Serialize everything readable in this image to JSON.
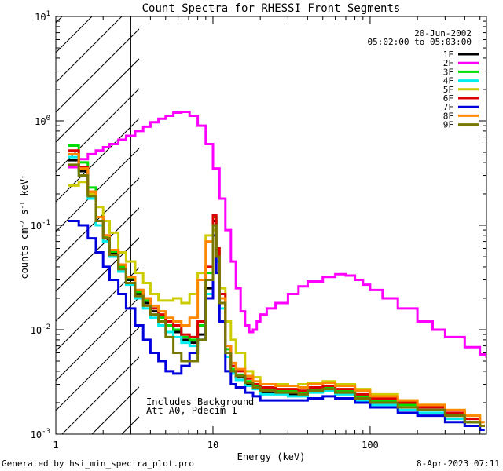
{
  "chart_data": {
    "type": "line",
    "title": "Count Spectra for RHESSI Front Segments",
    "xlabel": "Energy (keV)",
    "ylabel": "counts cm",
    "ylabel_sup1": "-2",
    "ylabel_mid": " s",
    "ylabel_sup2": "-1",
    "ylabel_mid2": " keV",
    "ylabel_sup3": "-1",
    "x_scale": "log",
    "y_scale": "log",
    "xlim": [
      1,
      550
    ],
    "ylim": [
      0.001,
      10
    ],
    "x_ticks": [
      {
        "v": 1,
        "label": "1"
      },
      {
        "v": 10,
        "label": "10"
      },
      {
        "v": 100,
        "label": "100"
      }
    ],
    "y_ticks": [
      {
        "v": 0.001,
        "base": "10",
        "exp": "-3"
      },
      {
        "v": 0.01,
        "base": "10",
        "exp": "-2"
      },
      {
        "v": 0.1,
        "base": "10",
        "exp": "-1"
      },
      {
        "v": 1,
        "base": "10",
        "exp": "0"
      },
      {
        "v": 10,
        "base": "10",
        "exp": "1"
      }
    ],
    "hatched_below_keV": 3,
    "date": "20-Jun-2002",
    "time_range": "05:02:00 to 05:03:00",
    "annotation_line1": "Includes Background",
    "annotation_line2": "Att A0, Pdecim 1",
    "footer_left": "Generated by hsi_min_spectra_plot.pro",
    "footer_right": "8-Apr-2023 07:11",
    "series": [
      {
        "name": "1F",
        "color": "#000000",
        "x": [
          1.2,
          1.4,
          1.6,
          1.8,
          2.0,
          2.2,
          2.5,
          2.8,
          3.2,
          3.6,
          4.0,
          4.5,
          5.0,
          5.6,
          6.3,
          7.1,
          8.0,
          9.0,
          10,
          10.5,
          11,
          12,
          13,
          14,
          16,
          18,
          20,
          25,
          30,
          35,
          40,
          50,
          60,
          80,
          100,
          150,
          200,
          300,
          400,
          500
        ],
        "y": [
          0.42,
          0.33,
          0.2,
          0.11,
          0.075,
          0.055,
          0.04,
          0.03,
          0.022,
          0.018,
          0.015,
          0.013,
          0.011,
          0.0095,
          0.008,
          0.0075,
          0.009,
          0.025,
          0.11,
          0.05,
          0.018,
          0.006,
          0.004,
          0.0035,
          0.003,
          0.0028,
          0.0025,
          0.0025,
          0.0024,
          0.0024,
          0.0026,
          0.0027,
          0.0025,
          0.0022,
          0.002,
          0.0018,
          0.0017,
          0.0015,
          0.0013,
          0.0012
        ]
      },
      {
        "name": "2F",
        "color": "#ff00ff",
        "x": [
          1.2,
          1.4,
          1.6,
          1.8,
          2.0,
          2.2,
          2.5,
          2.8,
          3.2,
          3.6,
          4.0,
          4.5,
          5.0,
          5.6,
          6.3,
          7.1,
          8.0,
          9.0,
          10,
          11,
          12,
          13,
          14,
          15,
          16,
          17,
          18,
          19,
          20,
          22,
          25,
          30,
          35,
          40,
          50,
          60,
          70,
          80,
          90,
          100,
          120,
          150,
          200,
          250,
          300,
          400,
          500,
          550
        ],
        "y": [
          0.36,
          0.43,
          0.48,
          0.52,
          0.56,
          0.6,
          0.66,
          0.72,
          0.8,
          0.88,
          0.97,
          1.05,
          1.12,
          1.2,
          1.22,
          1.12,
          0.9,
          0.6,
          0.35,
          0.18,
          0.09,
          0.045,
          0.025,
          0.015,
          0.011,
          0.0095,
          0.01,
          0.012,
          0.014,
          0.016,
          0.018,
          0.022,
          0.026,
          0.029,
          0.032,
          0.034,
          0.033,
          0.03,
          0.027,
          0.024,
          0.02,
          0.016,
          0.012,
          0.01,
          0.0085,
          0.0068,
          0.0058,
          0.0055
        ]
      },
      {
        "name": "3F",
        "color": "#00dd00",
        "x": [
          1.2,
          1.4,
          1.6,
          1.8,
          2.0,
          2.2,
          2.5,
          2.8,
          3.2,
          3.6,
          4.0,
          4.5,
          5.0,
          5.6,
          6.3,
          7.1,
          8.0,
          9.0,
          10,
          10.5,
          11,
          12,
          13,
          14,
          16,
          18,
          20,
          25,
          30,
          35,
          40,
          50,
          60,
          80,
          100,
          150,
          200,
          300,
          400,
          500
        ],
        "y": [
          0.58,
          0.4,
          0.23,
          0.12,
          0.078,
          0.056,
          0.04,
          0.031,
          0.023,
          0.019,
          0.016,
          0.013,
          0.011,
          0.01,
          0.0085,
          0.008,
          0.011,
          0.035,
          0.12,
          0.06,
          0.02,
          0.0065,
          0.0042,
          0.0037,
          0.0032,
          0.0029,
          0.0027,
          0.0026,
          0.0026,
          0.0025,
          0.0027,
          0.0028,
          0.0026,
          0.0023,
          0.0021,
          0.0019,
          0.0017,
          0.0015,
          0.0013,
          0.0012
        ]
      },
      {
        "name": "4F",
        "color": "#00eeee",
        "x": [
          1.2,
          1.4,
          1.6,
          1.8,
          2.0,
          2.2,
          2.5,
          2.8,
          3.2,
          3.6,
          4.0,
          4.5,
          5.0,
          5.6,
          6.3,
          7.1,
          8.0,
          9.0,
          10,
          10.5,
          11,
          12,
          13,
          14,
          16,
          18,
          20,
          25,
          30,
          35,
          40,
          50,
          60,
          80,
          100,
          150,
          200,
          300,
          400,
          500
        ],
        "y": [
          0.45,
          0.3,
          0.18,
          0.1,
          0.07,
          0.05,
          0.036,
          0.027,
          0.02,
          0.016,
          0.013,
          0.011,
          0.0095,
          0.0085,
          0.0075,
          0.007,
          0.008,
          0.022,
          0.1,
          0.045,
          0.016,
          0.0055,
          0.0038,
          0.0033,
          0.0029,
          0.0027,
          0.0024,
          0.0024,
          0.0023,
          0.0023,
          0.0025,
          0.0026,
          0.0024,
          0.0021,
          0.0019,
          0.0017,
          0.0016,
          0.0014,
          0.0012,
          0.0011
        ]
      },
      {
        "name": "5F",
        "color": "#cccc00",
        "x": [
          1.2,
          1.4,
          1.6,
          1.8,
          2.0,
          2.2,
          2.5,
          2.8,
          3.2,
          3.6,
          4.0,
          4.5,
          5.0,
          5.6,
          6.3,
          7.1,
          8.0,
          9.0,
          10,
          10.5,
          11,
          12,
          13,
          14,
          16,
          18,
          20,
          25,
          30,
          35,
          40,
          50,
          60,
          80,
          100,
          150,
          200,
          300,
          400,
          500
        ],
        "y": [
          0.24,
          0.26,
          0.2,
          0.15,
          0.11,
          0.085,
          0.055,
          0.045,
          0.035,
          0.028,
          0.022,
          0.019,
          0.019,
          0.02,
          0.018,
          0.022,
          0.035,
          0.08,
          0.09,
          0.05,
          0.025,
          0.012,
          0.008,
          0.006,
          0.004,
          0.0035,
          0.003,
          0.003,
          0.0029,
          0.003,
          0.0031,
          0.0032,
          0.003,
          0.0027,
          0.0024,
          0.0021,
          0.0019,
          0.0017,
          0.0015,
          0.0013
        ]
      },
      {
        "name": "6F",
        "color": "#dd0000",
        "x": [
          1.2,
          1.4,
          1.6,
          1.8,
          2.0,
          2.2,
          2.5,
          2.8,
          3.2,
          3.6,
          4.0,
          4.5,
          5.0,
          5.6,
          6.3,
          7.1,
          8.0,
          9.0,
          10,
          10.5,
          11,
          12,
          13,
          14,
          16,
          18,
          20,
          25,
          30,
          35,
          40,
          50,
          60,
          80,
          100,
          150,
          200,
          300,
          400,
          500
        ],
        "y": [
          0.52,
          0.36,
          0.21,
          0.12,
          0.08,
          0.058,
          0.042,
          0.032,
          0.024,
          0.02,
          0.016,
          0.014,
          0.012,
          0.011,
          0.009,
          0.0085,
          0.012,
          0.04,
          0.125,
          0.06,
          0.022,
          0.007,
          0.0045,
          0.004,
          0.0034,
          0.003,
          0.0028,
          0.0027,
          0.0027,
          0.0026,
          0.0028,
          0.0029,
          0.0027,
          0.0024,
          0.0022,
          0.002,
          0.0018,
          0.0016,
          0.0014,
          0.0012
        ]
      },
      {
        "name": "7F",
        "color": "#0000dd",
        "x": [
          1.2,
          1.4,
          1.6,
          1.8,
          2.0,
          2.2,
          2.5,
          2.8,
          3.2,
          3.6,
          4.0,
          4.5,
          5.0,
          5.6,
          6.3,
          7.1,
          8.0,
          9.0,
          10,
          10.5,
          11,
          12,
          13,
          14,
          16,
          18,
          20,
          25,
          30,
          35,
          40,
          50,
          60,
          80,
          100,
          150,
          200,
          300,
          400,
          500
        ],
        "y": [
          0.11,
          0.1,
          0.075,
          0.055,
          0.04,
          0.03,
          0.022,
          0.016,
          0.011,
          0.008,
          0.006,
          0.005,
          0.004,
          0.0038,
          0.0045,
          0.006,
          0.008,
          0.02,
          0.08,
          0.035,
          0.012,
          0.004,
          0.003,
          0.0028,
          0.0025,
          0.0023,
          0.0021,
          0.0021,
          0.0021,
          0.0021,
          0.0022,
          0.0023,
          0.0022,
          0.002,
          0.0018,
          0.0016,
          0.0015,
          0.0013,
          0.0012,
          0.0011
        ]
      },
      {
        "name": "8F",
        "color": "#ff8800",
        "x": [
          1.2,
          1.4,
          1.6,
          1.8,
          2.0,
          2.2,
          2.5,
          2.8,
          3.2,
          3.6,
          4.0,
          4.5,
          5.0,
          5.6,
          6.3,
          7.1,
          8.0,
          9.0,
          10,
          10.5,
          11,
          12,
          13,
          14,
          16,
          18,
          20,
          25,
          30,
          35,
          40,
          50,
          60,
          80,
          100,
          150,
          200,
          300,
          400,
          500
        ],
        "y": [
          0.48,
          0.35,
          0.21,
          0.12,
          0.08,
          0.058,
          0.042,
          0.032,
          0.024,
          0.02,
          0.017,
          0.015,
          0.013,
          0.012,
          0.011,
          0.013,
          0.03,
          0.07,
          0.1,
          0.05,
          0.02,
          0.007,
          0.0048,
          0.0042,
          0.0036,
          0.0032,
          0.003,
          0.0029,
          0.0029,
          0.0028,
          0.003,
          0.0031,
          0.0029,
          0.0026,
          0.0023,
          0.0021,
          0.0019,
          0.0017,
          0.0015,
          0.0013
        ]
      },
      {
        "name": "9F",
        "color": "#777700",
        "x": [
          1.2,
          1.4,
          1.6,
          1.8,
          2.0,
          2.2,
          2.5,
          2.8,
          3.2,
          3.6,
          4.0,
          4.5,
          5.0,
          5.6,
          6.3,
          7.1,
          8.0,
          9.0,
          10,
          10.5,
          11,
          12,
          13,
          14,
          16,
          18,
          20,
          25,
          30,
          35,
          40,
          50,
          60,
          80,
          100,
          150,
          200,
          300,
          400,
          500
        ],
        "y": [
          0.38,
          0.3,
          0.19,
          0.11,
          0.075,
          0.052,
          0.038,
          0.028,
          0.021,
          0.017,
          0.014,
          0.012,
          0.0085,
          0.006,
          0.005,
          0.005,
          0.008,
          0.03,
          0.1,
          0.05,
          0.018,
          0.006,
          0.004,
          0.0036,
          0.0031,
          0.0028,
          0.0026,
          0.0025,
          0.0025,
          0.0024,
          0.0026,
          0.0027,
          0.0025,
          0.0022,
          0.002,
          0.0018,
          0.0017,
          0.0015,
          0.0013,
          0.0012
        ]
      }
    ]
  }
}
